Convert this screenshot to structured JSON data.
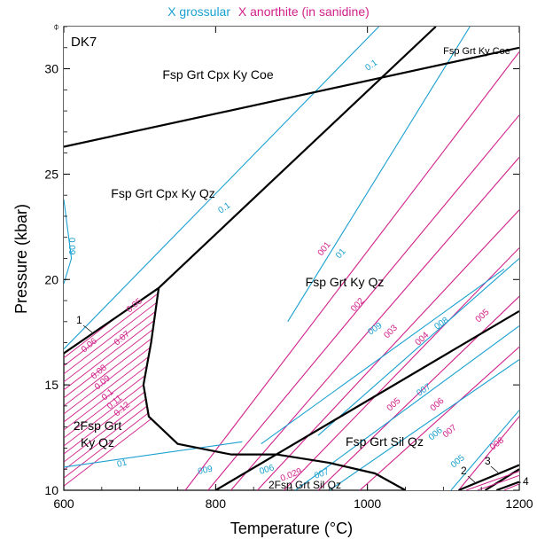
{
  "colors": {
    "grossular": "#1aa0d0",
    "anorthite": "#d1208a",
    "boundary": "#000000"
  },
  "chart_data": {
    "type": "line",
    "title_parts": [
      "X grossular",
      "X anorthite (in sanidine)"
    ],
    "sample": "DK7",
    "xlabel": "Temperature (°C)",
    "ylabel": "Pressure (kbar)",
    "xlim": [
      600,
      1200
    ],
    "ylim": [
      10,
      32
    ],
    "xticks": [
      600,
      800,
      1000,
      1200
    ],
    "yticks": [
      10,
      15,
      20,
      25,
      30
    ],
    "fields": [
      "Fsp Grt Cpx Ky Coe",
      "Fsp Grt Cpx Ky Qz",
      "Fsp Grt Ky Qz",
      "Fsp Grt Sil Qz",
      "2Fsp Grt",
      "Ky Qz",
      "2Fsp Grt Sil Qz",
      "Fsp Grt Ky Coe"
    ],
    "reaction_numbers": [
      "1",
      "2",
      "3",
      "4"
    ],
    "boundaries": [
      {
        "name": "coesite-quartz",
        "points": [
          [
            600,
            26.3
          ],
          [
            1200,
            31.0
          ]
        ]
      },
      {
        "name": "cpx-out",
        "points": [
          [
            600,
            16.5
          ],
          [
            725,
            19.6
          ],
          [
            1090,
            32
          ]
        ]
      },
      {
        "name": "solvus",
        "points": [
          [
            725,
            19.6
          ],
          [
            715,
            17.0
          ],
          [
            705,
            15.0
          ],
          [
            712,
            13.5
          ],
          [
            750,
            12.2
          ],
          [
            820,
            11.7
          ],
          [
            880,
            11.7
          ],
          [
            950,
            11.3
          ],
          [
            1010,
            10.8
          ],
          [
            1050,
            10.0
          ]
        ]
      },
      {
        "name": "kyanite-sillimanite",
        "points": [
          [
            800,
            10.0
          ],
          [
            1200,
            18.5
          ]
        ]
      },
      {
        "name": "reaction-2",
        "points": [
          [
            1120,
            10.0
          ],
          [
            1200,
            11.2
          ]
        ]
      },
      {
        "name": "reaction-3",
        "points": [
          [
            1155,
            10.0
          ],
          [
            1200,
            11.0
          ]
        ]
      },
      {
        "name": "reaction-4",
        "points": [
          [
            1170,
            10.0
          ],
          [
            1200,
            10.4
          ]
        ]
      }
    ],
    "grossular_isopleths": [
      {
        "label": "0.1",
        "x": [
          [
            600,
            16.7
          ],
          [
            1015,
            32
          ]
        ]
      },
      {
        "label": "01",
        "x": [
          [
            895,
            18.0
          ],
          [
            1135,
            32
          ]
        ]
      },
      {
        "label": "009",
        "x": [
          [
            860,
            12.2
          ],
          [
            1180,
            20.5
          ]
        ]
      },
      {
        "label": "008",
        "x": [
          [
            935,
            12.6
          ],
          [
            1200,
            21.0
          ]
        ]
      },
      {
        "label": "007",
        "x": [
          [
            905,
            10.0
          ],
          [
            1200,
            17.8
          ]
        ]
      },
      {
        "label": "006",
        "x": [
          [
            950,
            10.0
          ],
          [
            1200,
            16.2
          ]
        ]
      },
      {
        "label": "005",
        "x": [
          [
            1110,
            10.0
          ],
          [
            1200,
            13.8
          ]
        ]
      },
      {
        "label": "0.09",
        "x": [
          [
            600,
            23.8
          ],
          [
            610,
            21.0
          ],
          [
            600,
            19.8
          ]
        ]
      },
      {
        "label": "01",
        "x": [
          [
            600,
            11.1
          ],
          [
            835,
            12.3
          ]
        ]
      }
    ],
    "anorthite_isopleths": [
      {
        "label": "001",
        "x": [
          [
            760,
            10.0
          ],
          [
            1200,
            30.8
          ]
        ]
      },
      {
        "label": "002",
        "x": [
          [
            790,
            10.0
          ],
          [
            1200,
            27.8
          ]
        ]
      },
      {
        "label": "003",
        "x": [
          [
            820,
            10.0
          ],
          [
            1200,
            25.8
          ]
        ]
      },
      {
        "label": "004",
        "x": [
          [
            855,
            10.0
          ],
          [
            1200,
            23.3
          ]
        ]
      },
      {
        "label": "005",
        "x": [
          [
            890,
            10.0
          ],
          [
            1200,
            21.5
          ]
        ]
      },
      {
        "label": "006",
        "x": [
          [
            935,
            10.0
          ],
          [
            1200,
            19.2
          ]
        ]
      },
      {
        "label": "007",
        "x": [
          [
            990,
            10.0
          ],
          [
            1200,
            16.8
          ]
        ]
      },
      {
        "label": "008",
        "x": [
          [
            1120,
            10.0
          ],
          [
            1200,
            13.5
          ]
        ]
      }
    ],
    "hatched_field_labels": [
      "0.05",
      "0.06",
      "0.07",
      "0.08",
      "0.09",
      "0.1",
      "0.11",
      "0.12",
      "0.09",
      "0.1",
      "0.029",
      "0.1"
    ]
  }
}
